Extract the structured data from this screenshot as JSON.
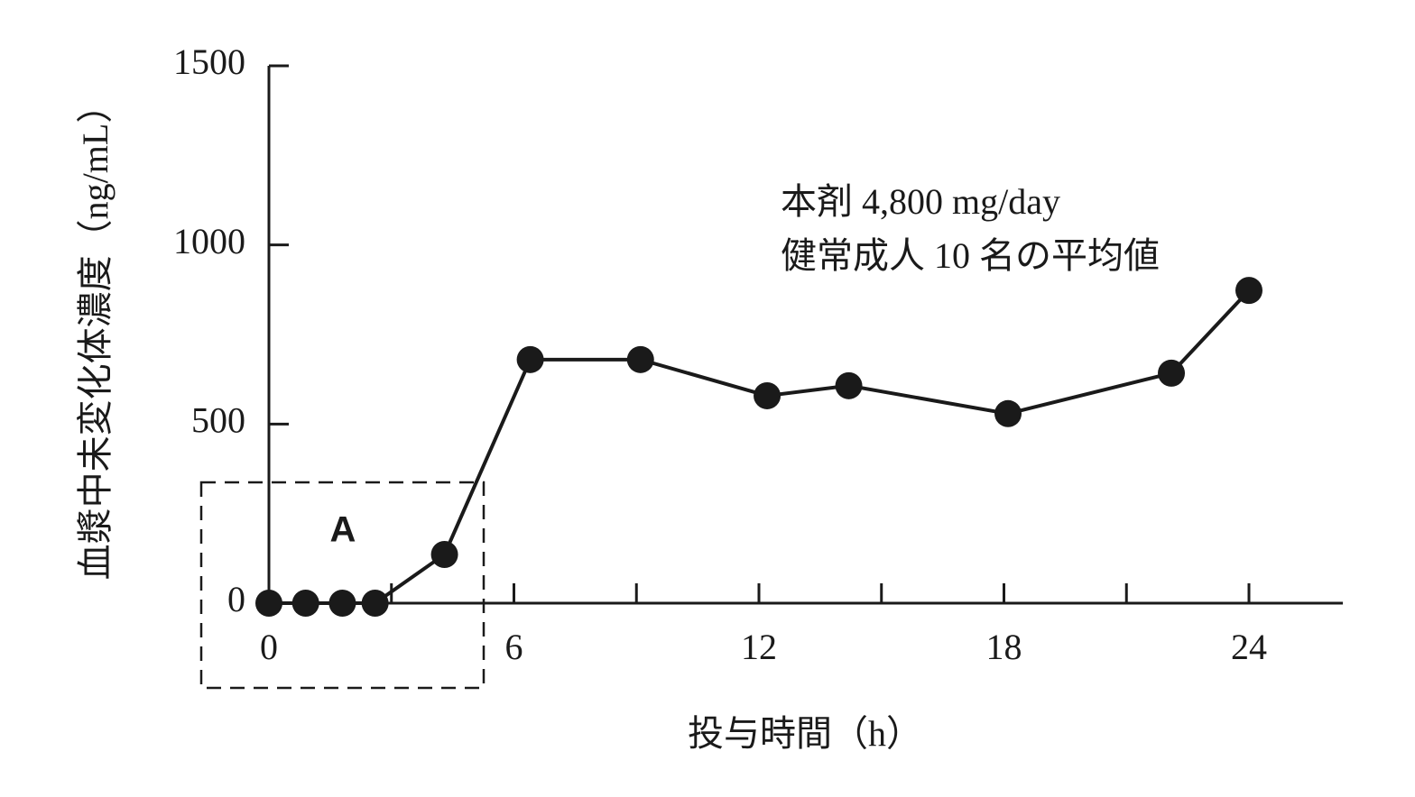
{
  "chart_data": {
    "type": "line",
    "x_label": "投与時間（h）",
    "y_label": "血漿中未変化体濃度（ng/mL）",
    "annotation": [
      "本剤 4,800 mg/day",
      "健常成人 10 名の平均値"
    ],
    "region_label": "A",
    "x": [
      0,
      0.9,
      1.8,
      2.6,
      4.3,
      6.4,
      9.1,
      12.2,
      14.2,
      18.1,
      22.1,
      24
    ],
    "series": [
      {
        "color": "#1a1a1a",
        "values": [
          0,
          0,
          0,
          0,
          136,
          680,
          680,
          579,
          607,
          529,
          642,
          873
        ]
      }
    ],
    "xlim": [
      0,
      26.3
    ],
    "xticks": [
      0,
      6,
      12,
      18,
      24
    ],
    "xminor_ticks": [
      3,
      9,
      15,
      21
    ],
    "ylim": [
      0,
      1500
    ],
    "yticks": [
      0,
      500,
      1000,
      1500
    ]
  }
}
